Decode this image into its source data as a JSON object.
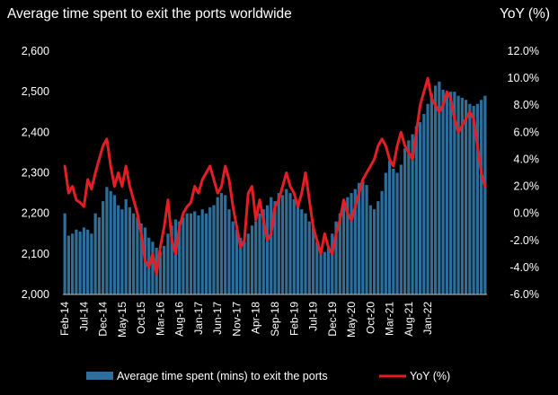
{
  "chart_data": {
    "type": "bar+line",
    "title": "Average time spent to exit the ports worldwide",
    "y2_label": "YoY (%)",
    "ylim": [
      2000,
      2600
    ],
    "yticks": [
      "2,000",
      "2,100",
      "2,200",
      "2,300",
      "2,400",
      "2,500",
      "2,600"
    ],
    "y2lim": [
      -6.0,
      12.0
    ],
    "y2ticks": [
      "-6.0%",
      "-4.0%",
      "-2.0%",
      "0.0%",
      "2.0%",
      "4.0%",
      "6.0%",
      "8.0%",
      "10.0%",
      "12.0%"
    ],
    "x_tick_labels": [
      "Feb-14",
      "Jul-14",
      "Dec-14",
      "May-15",
      "Oct-15",
      "Mar-16",
      "Aug-16",
      "Jan-17",
      "Jun-17",
      "Nov-17",
      "Apr-18",
      "Sep-18",
      "Feb-19",
      "Jul-19",
      "Dec-19",
      "May-20",
      "Oct-20",
      "Mar-21",
      "Aug-21",
      "Jan-22"
    ],
    "x_start": "2014-02",
    "x_end": "2022-06",
    "series": [
      {
        "name": "Average time spent (mins) to exit the ports",
        "kind": "bar",
        "color": "#2e6e9a",
        "values": [
          2200,
          2145,
          2150,
          2160,
          2155,
          2165,
          2160,
          2150,
          2200,
          2190,
          2230,
          2265,
          2255,
          2245,
          2220,
          2210,
          2235,
          2215,
          2200,
          2190,
          2175,
          2165,
          2140,
          2130,
          2115,
          2105,
          2120,
          2150,
          2170,
          2185,
          2180,
          2190,
          2200,
          2200,
          2205,
          2195,
          2210,
          2200,
          2215,
          2220,
          2240,
          2250,
          2245,
          2210,
          2180,
          2160,
          2140,
          2130,
          2150,
          2170,
          2180,
          2200,
          2210,
          2220,
          2240,
          2230,
          2250,
          2245,
          2260,
          2250,
          2235,
          2220,
          2210,
          2200,
          2180,
          2170,
          2130,
          2110,
          2105,
          2120,
          2150,
          2180,
          2200,
          2220,
          2240,
          2250,
          2260,
          2275,
          2280,
          2270,
          2220,
          2210,
          2230,
          2255,
          2300,
          2330,
          2310,
          2300,
          2320,
          2360,
          2380,
          2395,
          2415,
          2425,
          2445,
          2470,
          2495,
          2515,
          2525,
          2505,
          2495,
          2500,
          2500,
          2490,
          2485,
          2480,
          2470,
          2465,
          2470,
          2480,
          2490
        ]
      },
      {
        "name": "YoY (%)",
        "kind": "line",
        "color": "#e31e24",
        "values": [
          3.5,
          1.5,
          2.0,
          1.0,
          0.8,
          0.5,
          2.5,
          1.8,
          3.0,
          4.0,
          5.0,
          5.5,
          3.5,
          2.0,
          3.0,
          2.0,
          3.5,
          2.0,
          1.0,
          0.0,
          -1.5,
          -3.5,
          -4.0,
          -3.0,
          -4.5,
          -2.5,
          -1.0,
          1.0,
          -2.0,
          -3.0,
          -1.0,
          0.0,
          0.5,
          0.8,
          2.0,
          1.5,
          2.5,
          3.0,
          3.5,
          2.5,
          1.5,
          2.0,
          3.5,
          2.5,
          0.5,
          -1.0,
          -2.5,
          -2.0,
          1.5,
          2.0,
          -0.5,
          1.0,
          -0.5,
          -2.0,
          -1.5,
          0.5,
          1.0,
          2.0,
          3.0,
          2.0,
          1.5,
          0.5,
          1.5,
          3.0,
          1.0,
          -1.0,
          -2.0,
          -3.0,
          -1.5,
          -2.5,
          -3.0,
          -1.5,
          -0.5,
          1.0,
          0.0,
          -0.5,
          0.5,
          1.5,
          2.5,
          3.0,
          3.5,
          4.0,
          5.0,
          5.5,
          5.0,
          4.0,
          3.5,
          5.0,
          6.0,
          5.0,
          4.5,
          4.0,
          6.0,
          8.0,
          9.0,
          10.0,
          8.5,
          8.0,
          7.5,
          8.0,
          9.0,
          8.5,
          7.0,
          6.0,
          6.5,
          7.0,
          7.5,
          7.0,
          5.0,
          3.0,
          2.0
        ]
      }
    ],
    "legend_position": "bottom"
  }
}
